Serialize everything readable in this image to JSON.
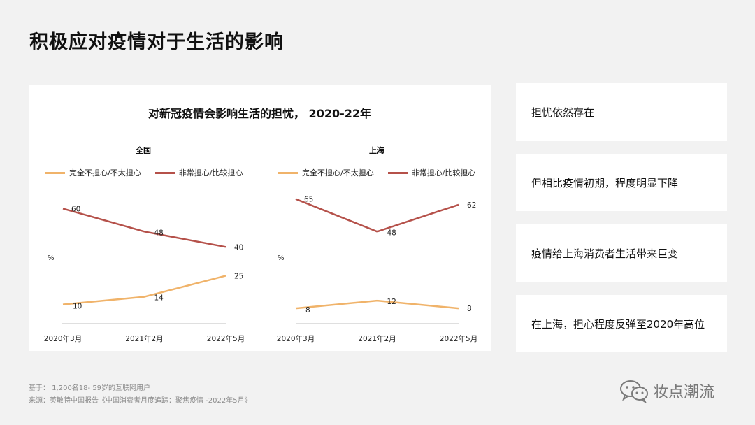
{
  "page_title": "积极应对疫情对于生活的影响",
  "chart_data": {
    "type": "line",
    "title": "对新冠疫情会影响生活的担忧，  2020-22年",
    "colors": {
      "not_worried": "#f0b36a",
      "worried": "#b5514a",
      "axis": "#bfbfbf"
    },
    "panels": [
      {
        "subtitle": "全国",
        "ylabel": "%",
        "categories": [
          "2020年3月",
          "2021年2月",
          "2022年5月"
        ],
        "ylim": [
          0,
          70
        ],
        "series": [
          {
            "name": "完全不担心/不太担心",
            "values": [
              10,
              14,
              25
            ]
          },
          {
            "name": "非常担心/比较担心",
            "values": [
              60,
              48,
              40
            ]
          }
        ]
      },
      {
        "subtitle": "上海",
        "ylabel": "%",
        "categories": [
          "2020年3月",
          "2021年2月",
          "2022年5月"
        ],
        "ylim": [
          0,
          70
        ],
        "series": [
          {
            "name": "完全不担心/不太担心",
            "values": [
              8,
              12,
              8
            ]
          },
          {
            "name": "非常担心/比较担心",
            "values": [
              65,
              48,
              62
            ]
          }
        ]
      }
    ]
  },
  "notes": [
    "担忧依然存在",
    "但相比疫情初期，程度明显下降",
    "疫情给上海消费者生活带来巨变",
    "在上海，担心程度反弹至2020年高位"
  ],
  "footer": {
    "base": "基于：   1,200名18- 59岁的互联网用户",
    "source": "来源：英敏特中国报告《中国消费者月度追踪：聚焦疫情 -2022年5月》"
  },
  "brand": {
    "name": "妆点潮流",
    "icon": "wechat-icon"
  }
}
